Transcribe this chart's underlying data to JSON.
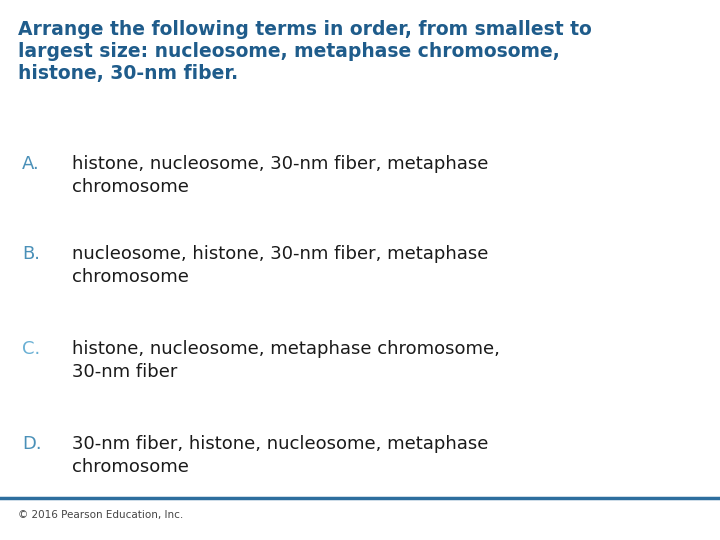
{
  "title_line1": "Arrange the following terms in order, from smallest to",
  "title_line2": "largest size: nucleosome, metaphase chromosome,",
  "title_line3": "histone, 30-nm fiber.",
  "title_color": "#1f5c8b",
  "title_fontsize": 13.5,
  "title_bold": true,
  "options": [
    {
      "letter": "A.",
      "letter_color": "#4a90b8",
      "text": "histone, nucleosome, 30-nm fiber, metaphase\nchromosome",
      "text_color": "#1a1a1a"
    },
    {
      "letter": "B.",
      "letter_color": "#4a90b8",
      "text": "nucleosome, histone, 30-nm fiber, metaphase\nchromosome",
      "text_color": "#1a1a1a"
    },
    {
      "letter": "C.",
      "letter_color": "#6ab0d4",
      "text": "histone, nucleosome, metaphase chromosome,\n30-nm fiber",
      "text_color": "#1a1a1a"
    },
    {
      "letter": "D.",
      "letter_color": "#4a90b8",
      "text": "30-nm fiber, histone, nucleosome, metaphase\nchromosome",
      "text_color": "#1a1a1a"
    }
  ],
  "footer": "© 2016 Pearson Education, Inc.",
  "footer_color": "#444444",
  "footer_fontsize": 7.5,
  "bg_color": "#ffffff",
  "line_color": "#2e6e9e",
  "line_width": 2.5,
  "option_fontsize": 13.0,
  "letter_fontsize": 13.0
}
